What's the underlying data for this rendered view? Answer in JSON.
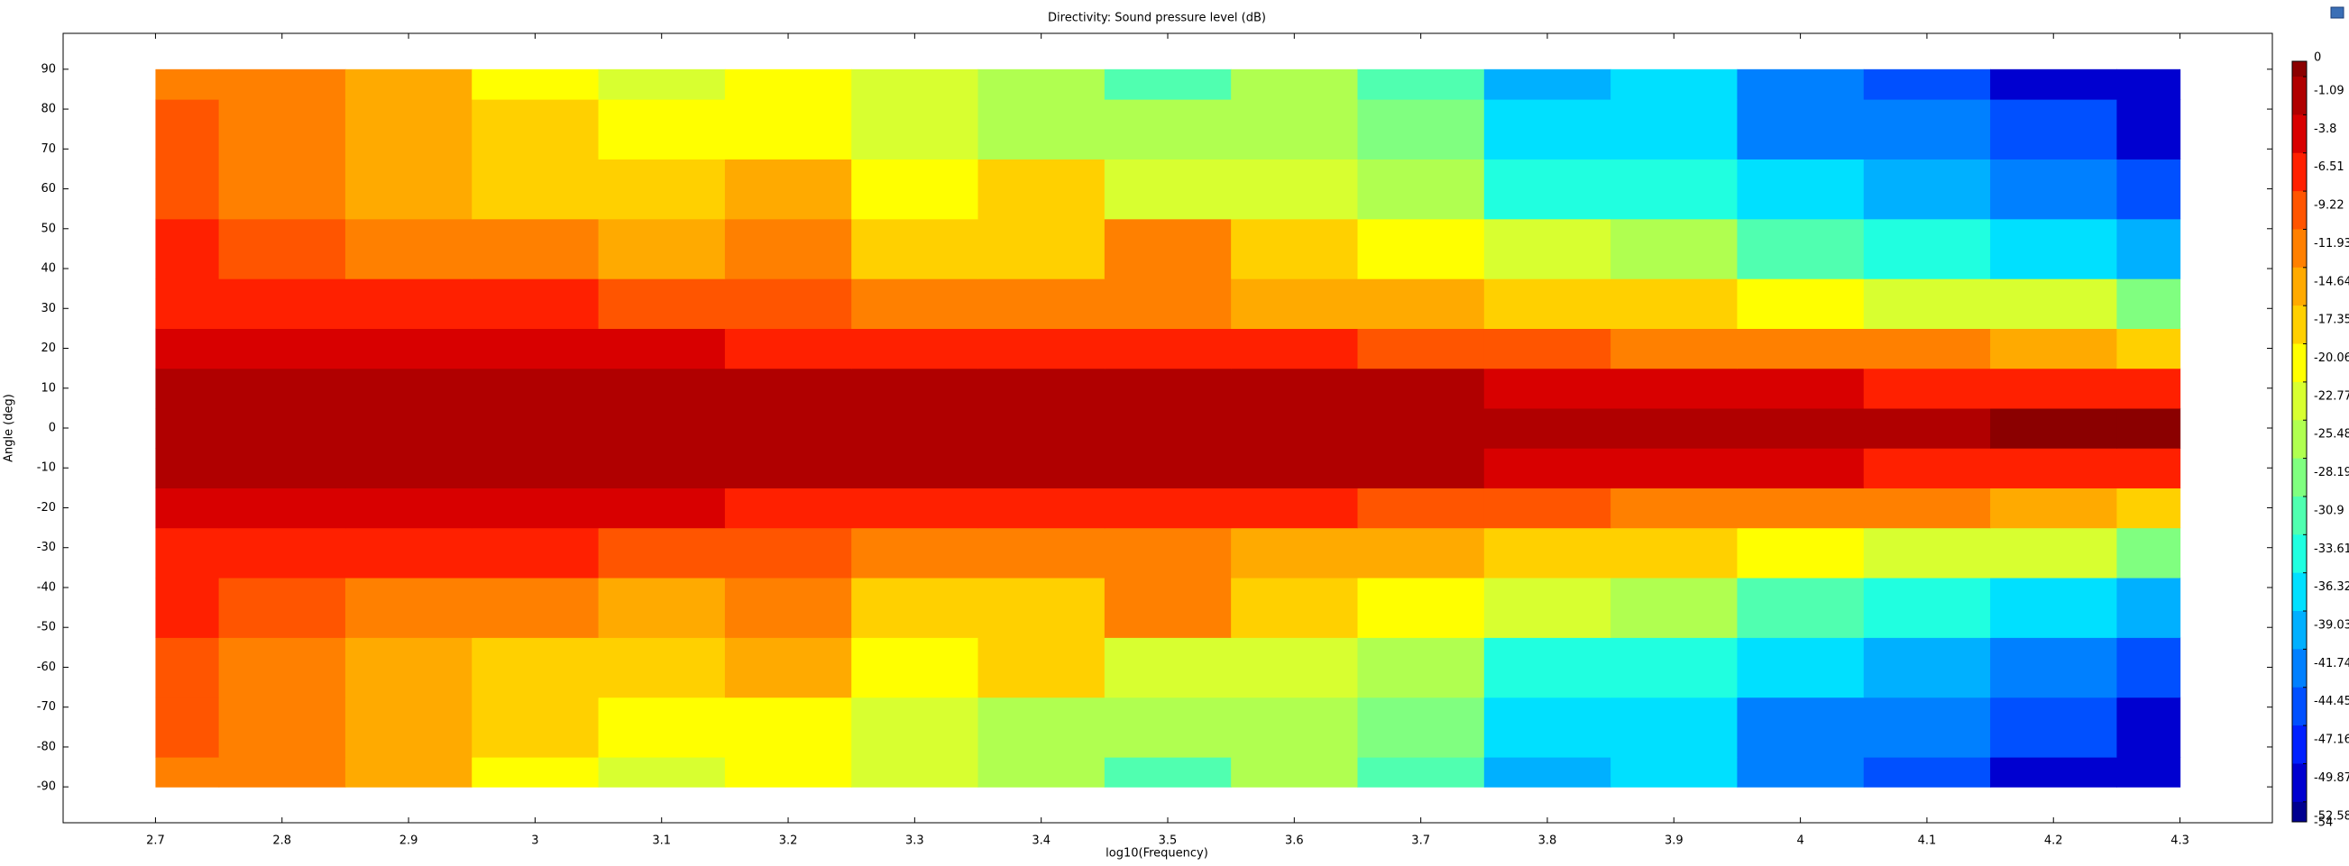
{
  "chart_data": {
    "type": "contour",
    "title": "Directivity: Sound pressure level (dB)",
    "xlabel": "log10(Frequency)",
    "ylabel": "Angle (deg)",
    "xlim": [
      2.627,
      4.373
    ],
    "ylim": [
      -99,
      99
    ],
    "xticks": [
      2.7,
      2.8,
      2.9,
      3,
      3.1,
      3.2,
      3.3,
      3.4,
      3.5,
      3.6,
      3.7,
      3.8,
      3.9,
      4,
      4.1,
      4.2,
      4.3
    ],
    "yticks": [
      -90,
      -80,
      -70,
      -60,
      -50,
      -40,
      -30,
      -20,
      -10,
      0,
      10,
      20,
      30,
      40,
      50,
      60,
      70,
      80,
      90
    ],
    "x": [
      2.7,
      2.8,
      2.9,
      3.0,
      3.1,
      3.2,
      3.3,
      3.4,
      3.5,
      3.6,
      3.7,
      3.8,
      3.9,
      4.0,
      4.1,
      4.2,
      4.3
    ],
    "y": [
      -90,
      -75,
      -60,
      -45,
      -30,
      -20,
      -10,
      0,
      10,
      20,
      30,
      45,
      60,
      75,
      90
    ],
    "z": [
      [
        -12,
        -13,
        -15,
        -21,
        -24,
        -22,
        -25,
        -27,
        -32,
        -28,
        -33,
        -40,
        -39,
        -44,
        -45,
        -50,
        -52
      ],
      [
        -11,
        -13,
        -16,
        -20,
        -22,
        -21,
        -24,
        -28,
        -27,
        -26,
        -30,
        -38,
        -37,
        -42,
        -44,
        -47,
        -50
      ],
      [
        -10,
        -12,
        -15,
        -18,
        -19,
        -17,
        -22,
        -18,
        -24,
        -25,
        -28,
        -34,
        -36,
        -38,
        -40,
        -44,
        -45
      ],
      [
        -8,
        -10,
        -12,
        -14,
        -17,
        -14,
        -18,
        -20,
        -13,
        -18,
        -22,
        -25,
        -28,
        -31,
        -34,
        -38,
        -40
      ],
      [
        -7,
        -8,
        -8.5,
        -9,
        -10,
        -11,
        -12,
        -13,
        -13,
        -15,
        -16,
        -18,
        -20,
        -21,
        -23,
        -25,
        -30
      ],
      [
        -5,
        -5,
        -5.5,
        -6,
        -6.5,
        -7,
        -7,
        -8,
        -8,
        -8.5,
        -9.5,
        -11,
        -12,
        -13,
        -14,
        -16,
        -20
      ],
      [
        -2.5,
        -2.5,
        -2.5,
        -2.7,
        -2.8,
        -3,
        -3,
        -3,
        -2.8,
        -2.5,
        -3.5,
        -4.5,
        -5.5,
        -6.5,
        -7.5,
        -8,
        -9
      ],
      [
        -1.5,
        -1.5,
        -1.5,
        -1.5,
        -1.5,
        -1.5,
        -1.5,
        -1.5,
        -1.5,
        -1.5,
        -1.5,
        -1.5,
        -1.5,
        -1.5,
        -1.2,
        -1,
        -0.5
      ],
      [
        -2.5,
        -2.5,
        -2.5,
        -2.7,
        -2.8,
        -3,
        -3,
        -3,
        -2.8,
        -2.5,
        -3.5,
        -4.5,
        -5.5,
        -6.5,
        -7.5,
        -8,
        -9
      ],
      [
        -5,
        -5,
        -5.5,
        -6,
        -6.5,
        -7,
        -7,
        -8,
        -8,
        -8.5,
        -9.5,
        -11,
        -12,
        -13,
        -14,
        -16,
        -20
      ],
      [
        -7,
        -8,
        -8.5,
        -9,
        -10,
        -11,
        -12,
        -13,
        -13,
        -15,
        -16,
        -18,
        -20,
        -21,
        -23,
        -25,
        -30
      ],
      [
        -8,
        -10,
        -12,
        -14,
        -17,
        -14,
        -18,
        -20,
        -13,
        -18,
        -22,
        -25,
        -28,
        -31,
        -34,
        -38,
        -40
      ],
      [
        -10,
        -12,
        -15,
        -18,
        -19,
        -17,
        -22,
        -18,
        -24,
        -25,
        -28,
        -34,
        -36,
        -38,
        -40,
        -44,
        -45
      ],
      [
        -11,
        -13,
        -16,
        -20,
        -22,
        -21,
        -24,
        -28,
        -27,
        -26,
        -30,
        -38,
        -37,
        -42,
        -44,
        -47,
        -50
      ],
      [
        -12,
        -13,
        -15,
        -21,
        -24,
        -22,
        -25,
        -27,
        -32,
        -28,
        -33,
        -40,
        -39,
        -44,
        -45,
        -50,
        -52
      ]
    ],
    "colorbar": {
      "lim": [
        -54,
        0
      ],
      "ticks": [
        0,
        -1.09,
        -3.8,
        -6.51,
        -9.22,
        -11.93,
        -14.64,
        -17.35,
        -20.06,
        -22.77,
        -25.48,
        -28.19,
        -30.9,
        -33.61,
        -36.32,
        -39.03,
        -41.74,
        -44.45,
        -47.16,
        -49.87,
        -52.58,
        -54
      ],
      "colormap": [
        "#8b0000",
        "#b00000",
        "#d80000",
        "#ff2000",
        "#ff5500",
        "#ff8000",
        "#ffaa00",
        "#ffd000",
        "#ffff00",
        "#d8ff30",
        "#b0ff50",
        "#80ff80",
        "#50ffb0",
        "#20ffe0",
        "#00e0ff",
        "#00b0ff",
        "#0080ff",
        "#0050ff",
        "#0020ff",
        "#0000d0",
        "#000090"
      ]
    }
  }
}
